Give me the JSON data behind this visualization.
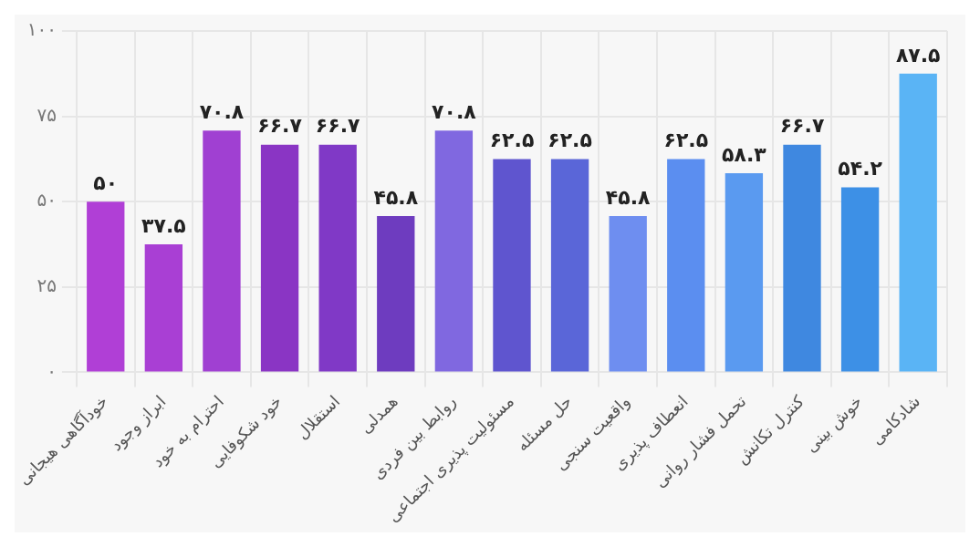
{
  "chart_data": {
    "type": "bar",
    "categories": [
      "خودآگاهی هیجانی",
      "ابراز وجود",
      "احترام به خود",
      "خود شکوفایی",
      "استقلال",
      "همدلی",
      "روابط بین فردی",
      "مسئولیت پذیری اجتماعی",
      "حل مسئله",
      "واقعیت سنجی",
      "انعطاف پذیری",
      "تحمل فشار روانی",
      "کنترل تکانش",
      "خوش بینی",
      "شادکامی"
    ],
    "values": [
      50,
      37.5,
      70.8,
      66.7,
      66.7,
      45.8,
      70.8,
      62.5,
      62.5,
      45.8,
      62.5,
      58.3,
      66.7,
      54.2,
      87.5
    ],
    "value_labels": [
      "۵۰",
      "۳۷.۵",
      "۷۰.۸",
      "۶۶.۷",
      "۶۶.۷",
      "۴۵.۸",
      "۷۰.۸",
      "۶۲.۵",
      "۶۲.۵",
      "۴۵.۸",
      "۶۲.۵",
      "۵۸.۳",
      "۶۶.۷",
      "۵۴.۲",
      "۸۷.۵"
    ],
    "colors": [
      "#b03fd6",
      "#a93fd4",
      "#a040d2",
      "#8a35c4",
      "#8039c6",
      "#6e3cbf",
      "#8068e0",
      "#5f55cf",
      "#5a66d8",
      "#6e8ef0",
      "#5b8ef0",
      "#5a9af0",
      "#3f88e0",
      "#3d90e6",
      "#5ab4f5"
    ],
    "ylim": [
      0,
      100
    ],
    "yticks": [
      {
        "value": 0,
        "label": "۰"
      },
      {
        "value": 25,
        "label": "۲۵"
      },
      {
        "value": 50,
        "label": "۵۰"
      },
      {
        "value": 75,
        "label": "۷۵"
      },
      {
        "value": 100,
        "label": "۱۰۰"
      }
    ],
    "grid": true
  }
}
